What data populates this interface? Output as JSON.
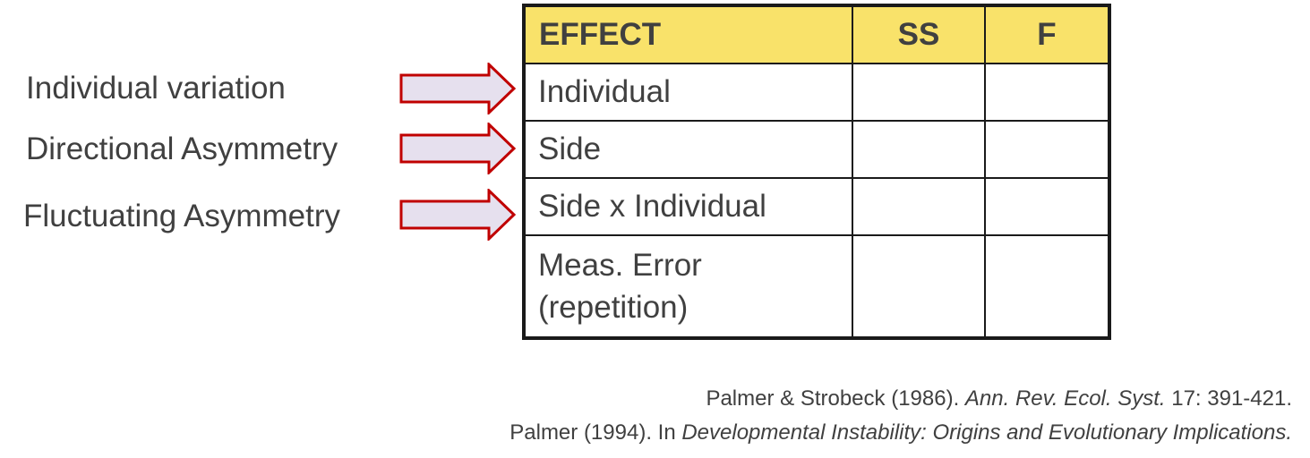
{
  "labels": [
    "Individual variation",
    "Directional Asymmetry",
    "Fluctuating Asymmetry"
  ],
  "arrow_colors": {
    "fill": "#e6e0ee",
    "stroke": "#c00000"
  },
  "header_color": "#f9e26a",
  "table": {
    "headers": {
      "effect": "EFFECT",
      "ss": "SS",
      "f": "F"
    },
    "rows": [
      {
        "effect": "Individual",
        "ss": "",
        "f": ""
      },
      {
        "effect": "Side",
        "ss": "",
        "f": ""
      },
      {
        "effect": "Side x Individual",
        "ss": "",
        "f": ""
      },
      {
        "effect_line1": "Meas. Error",
        "effect_line2": "(repetition)",
        "ss": "",
        "f": ""
      }
    ]
  },
  "references": {
    "ref1": {
      "authors": "Palmer & Strobeck (1986). ",
      "journal": "Ann. Rev. Ecol. Syst.",
      "details": " 17: 391-421."
    },
    "ref2": {
      "authors": "Palmer (1994). In ",
      "book": "Developmental Instability: Origins and Evolutionary Implications."
    }
  }
}
